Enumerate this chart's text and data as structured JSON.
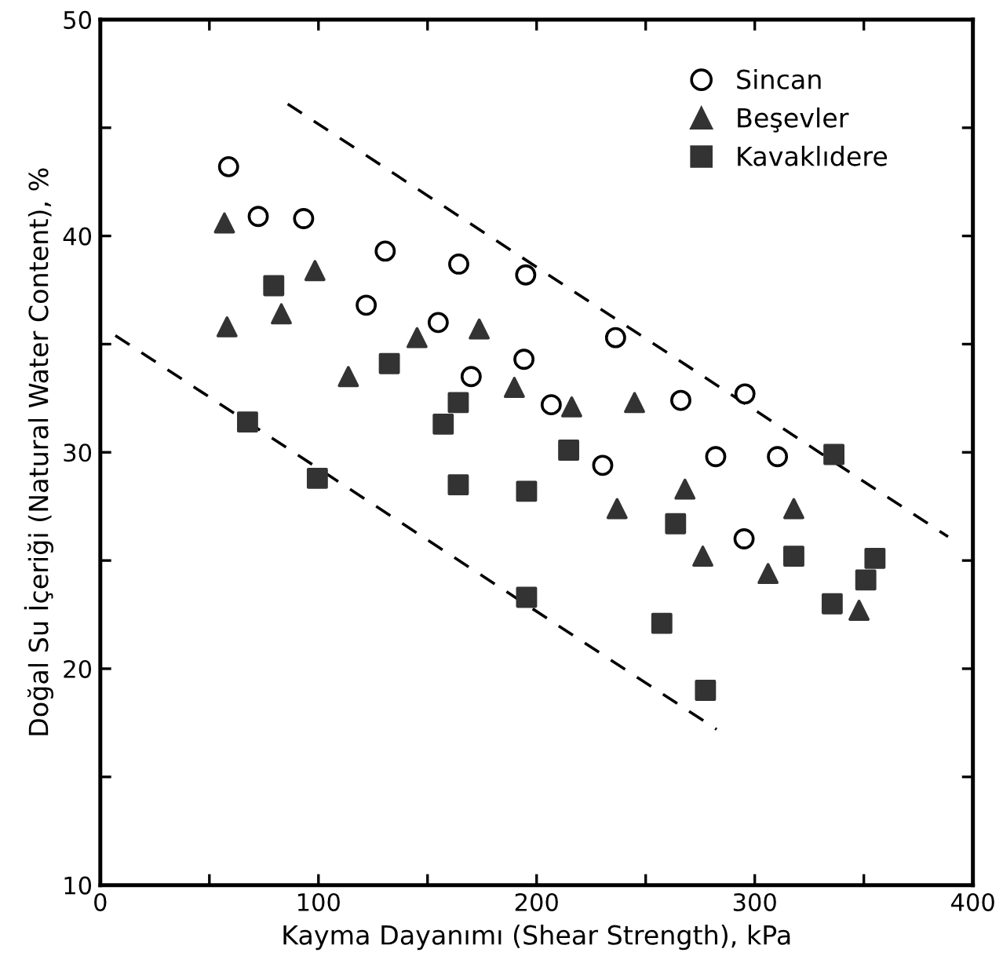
{
  "chart_data": {
    "type": "scatter",
    "xlabel": "Kayma Dayanımı (Shear Strength), kPa",
    "ylabel": "Doğal Su İçeriği (Natural Water Content), %",
    "xlim": [
      0,
      400
    ],
    "ylim": [
      10,
      50
    ],
    "xticks": [
      0,
      {
        "value": 50,
        "label": null
      },
      100,
      {
        "value": 150,
        "label": null
      },
      200,
      {
        "value": 250,
        "label": null
      },
      300,
      {
        "value": 350,
        "label": null
      },
      400
    ],
    "yticks": [
      10,
      {
        "value": 15,
        "label": null
      },
      20,
      {
        "value": 25,
        "label": null
      },
      30,
      {
        "value": 35,
        "label": null
      },
      40,
      {
        "value": 45,
        "label": null
      },
      50
    ],
    "grid": false,
    "legend": "top right",
    "series": [
      {
        "name": "Sincan",
        "color": "#000000",
        "marker": "circle",
        "x": [
          58.8,
          72.4,
          93.2,
          130.6,
          121.9,
          164.3,
          154.9,
          170,
          195,
          194.2,
          236.2,
          206.7,
          230.3,
          266.1,
          295.5,
          282.1,
          310.4,
          295.1
        ],
        "values": [
          43.2,
          40.9,
          40.8,
          39.3,
          36.8,
          38.7,
          36.0,
          33.5,
          38.2,
          34.3,
          35.3,
          32.2,
          29.4,
          32.4,
          32.7,
          29.8,
          29.8,
          26.0
        ]
      },
      {
        "name": "Beşevler",
        "color": "#333333",
        "marker": "triangle",
        "x": [
          56.9,
          58.1,
          83.0,
          98.4,
          113.7,
          145.2,
          173.7,
          189.8,
          216.1,
          244.9,
          268,
          236.9,
          276.2,
          317.9,
          306.1,
          347.8
        ],
        "values": [
          40.6,
          35.8,
          36.4,
          38.4,
          33.5,
          35.3,
          35.7,
          33.0,
          32.1,
          32.3,
          28.3,
          27.4,
          25.2,
          27.4,
          24.4,
          22.7
        ]
      },
      {
        "name": "Kavaklıdere",
        "color": "#333333",
        "marker": "square",
        "x": [
          79.5,
          67.5,
          99.5,
          132.5,
          164.1,
          157.2,
          164.1,
          195.4,
          214.7,
          263.7,
          195.4,
          257.4,
          277.4,
          336.3,
          317.9,
          335.5,
          355.1,
          350.9
        ],
        "values": [
          37.7,
          31.4,
          28.8,
          34.1,
          32.3,
          31.3,
          28.5,
          28.2,
          30.1,
          26.7,
          23.3,
          22.1,
          19.0,
          29.9,
          25.2,
          23.0,
          25.1,
          24.1
        ]
      },
      {
        "type": "line",
        "color": "#000000",
        "line_style": "dashed",
        "x": [
          85.9,
          388.6
        ],
        "values": [
          46.1,
          26.1
        ]
      },
      {
        "type": "line",
        "color": "#000000",
        "line_style": "dashed",
        "x": [
          6.9,
          282.5
        ],
        "values": [
          35.4,
          17.2
        ]
      }
    ]
  }
}
